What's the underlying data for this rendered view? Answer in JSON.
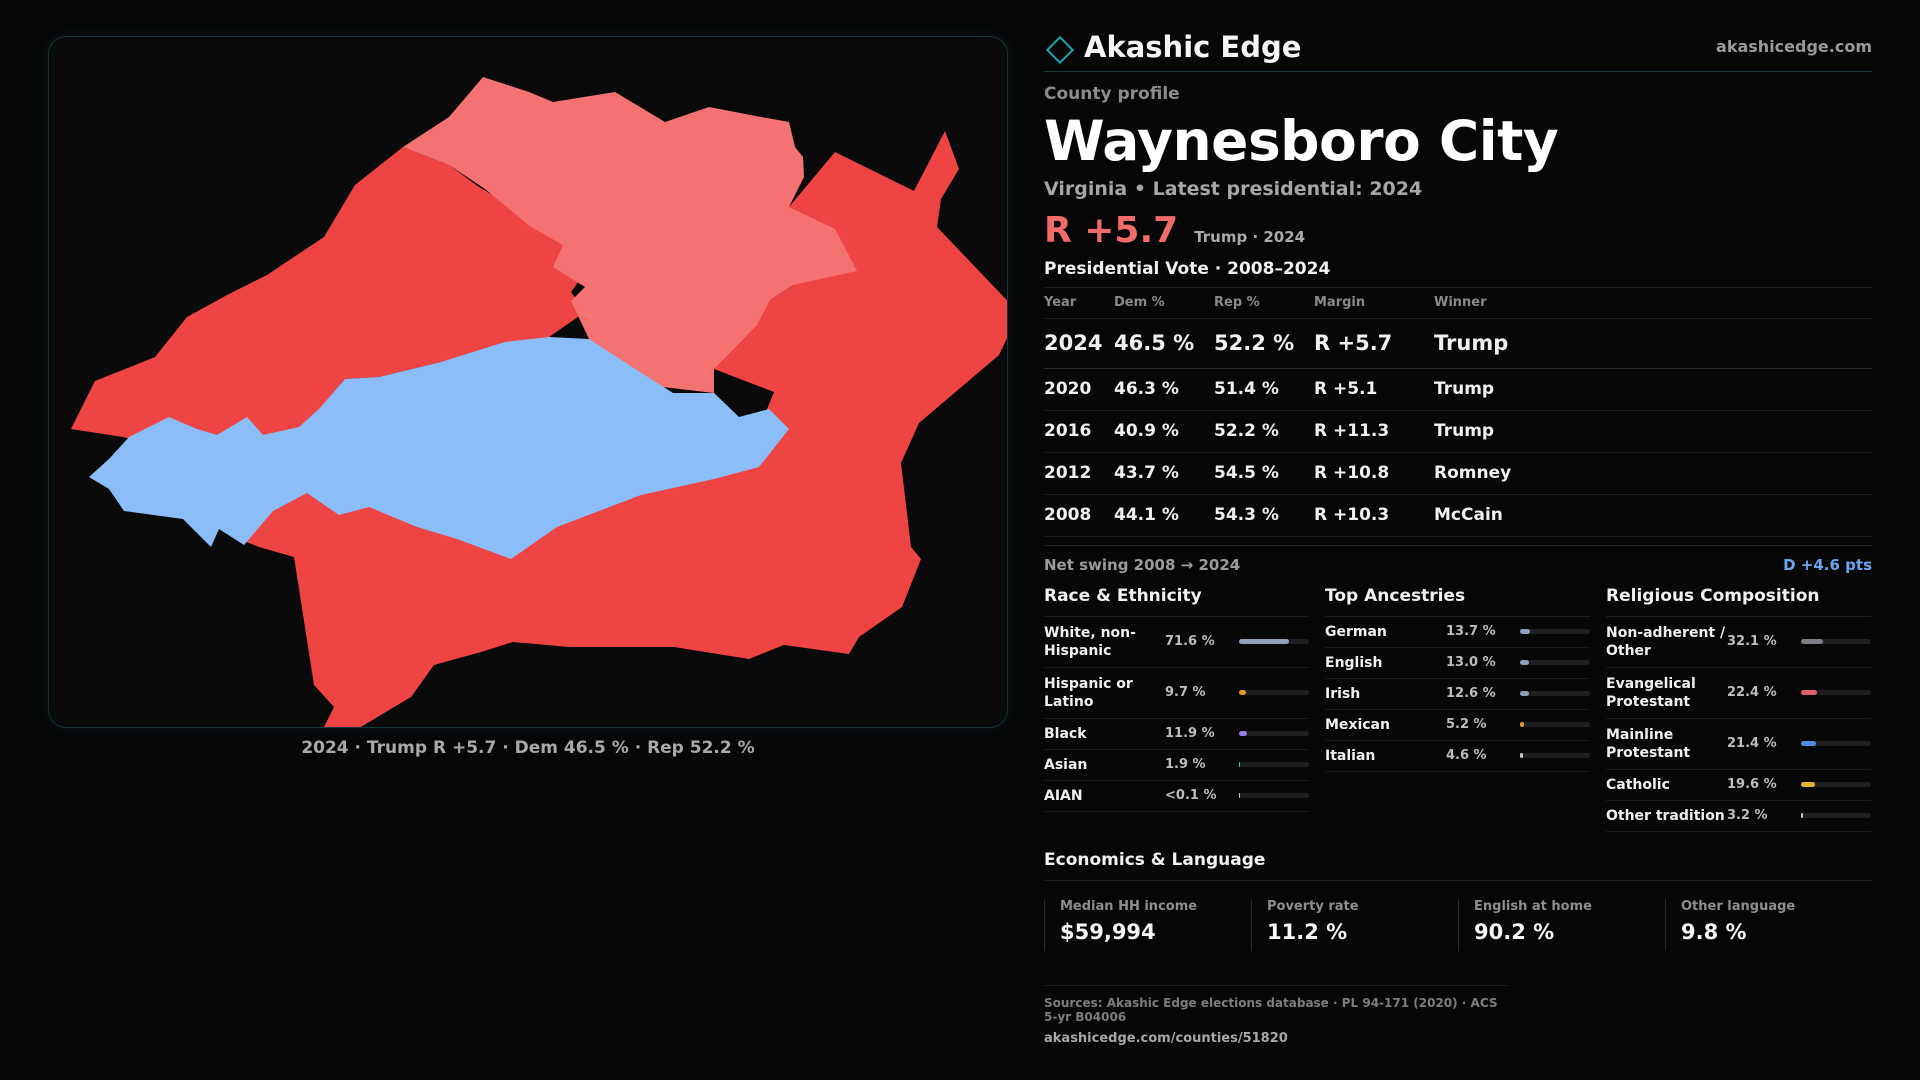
{
  "brand": {
    "name": "Akashic Edge",
    "url": "akashicedge.com",
    "accent": "#15a7b5"
  },
  "map": {
    "caption": "2024 · Trump R +5.7 · Dem 46.5 % · Rep 52.2 %",
    "precinct_colors": {
      "strong_rep": "#ef4444",
      "lean_rep": "#f47272",
      "dem": "#8bbef8"
    }
  },
  "profile": {
    "eyebrow": "County profile",
    "name": "Waynesboro City",
    "subline": "Virginia • Latest presidential: 2024",
    "headline_margin": "R +5.7",
    "headline_note": "Trump · 2024"
  },
  "votes": {
    "title": "Presidential Vote · 2008–2024",
    "headers": {
      "year": "Year",
      "dem": "Dem %",
      "rep": "Rep %",
      "margin": "Margin",
      "winner": "Winner"
    },
    "rows": [
      {
        "year": "2024",
        "dem": "46.5 %",
        "rep": "52.2 %",
        "margin": "R +5.7",
        "winner": "Trump"
      },
      {
        "year": "2020",
        "dem": "46.3 %",
        "rep": "51.4 %",
        "margin": "R +5.1",
        "winner": "Trump"
      },
      {
        "year": "2016",
        "dem": "40.9 %",
        "rep": "52.2 %",
        "margin": "R +11.3",
        "winner": "Trump"
      },
      {
        "year": "2012",
        "dem": "43.7 %",
        "rep": "54.5 %",
        "margin": "R +10.8",
        "winner": "Romney"
      },
      {
        "year": "2008",
        "dem": "44.1 %",
        "rep": "54.3 %",
        "margin": "R +10.3",
        "winner": "McCain"
      }
    ],
    "swing_label": "Net swing 2008 → 2024",
    "swing_value": "D +4.6 pts"
  },
  "race": {
    "title": "Race & Ethnicity",
    "items": [
      {
        "label": "White, non-Hispanic",
        "value": "71.6 %",
        "share": 71.6,
        "color": "#8e9fb8"
      },
      {
        "label": "Hispanic or Latino",
        "value": "9.7 %",
        "share": 9.7,
        "color": "#e0962c"
      },
      {
        "label": "Black",
        "value": "11.9 %",
        "share": 11.9,
        "color": "#9b7fe6"
      },
      {
        "label": "Asian",
        "value": "1.9 %",
        "share": 1.9,
        "color": "#3cc4a6"
      },
      {
        "label": "AIAN",
        "value": "<0.1 %",
        "share": 0.05,
        "color": "#c2c2c2"
      }
    ]
  },
  "ancestry": {
    "title": "Top Ancestries",
    "items": [
      {
        "label": "German",
        "value": "13.7 %",
        "share": 13.7,
        "color": "#8e9fb8"
      },
      {
        "label": "English",
        "value": "13.0 %",
        "share": 13.0,
        "color": "#8e9fb8"
      },
      {
        "label": "Irish",
        "value": "12.6 %",
        "share": 12.6,
        "color": "#8e9fb8"
      },
      {
        "label": "Mexican",
        "value": "5.2 %",
        "share": 5.2,
        "color": "#e0962c"
      },
      {
        "label": "Italian",
        "value": "4.6 %",
        "share": 4.6,
        "color": "#c9c9c9"
      }
    ]
  },
  "religion": {
    "title": "Religious Composition",
    "items": [
      {
        "label": "Non-adherent / Other",
        "value": "32.1 %",
        "share": 32.1,
        "color": "#7d7f86"
      },
      {
        "label": "Evangelical Protestant",
        "value": "22.4 %",
        "share": 22.4,
        "color": "#e0606e"
      },
      {
        "label": "Mainline Protestant",
        "value": "21.4 %",
        "share": 21.4,
        "color": "#4f8be0"
      },
      {
        "label": "Catholic",
        "value": "19.6 %",
        "share": 19.6,
        "color": "#e3b52c"
      },
      {
        "label": "Other tradition",
        "value": "3.2 %",
        "share": 3.2,
        "color": "#c9c9c9"
      }
    ]
  },
  "economics": {
    "title": "Economics & Language",
    "cards": [
      {
        "label": "Median HH income",
        "value": "$59,994"
      },
      {
        "label": "Poverty rate",
        "value": "11.2 %"
      },
      {
        "label": "English at home",
        "value": "90.2 %"
      },
      {
        "label": "Other language",
        "value": "9.8 %"
      }
    ]
  },
  "sources": {
    "line": "Sources: Akashic Edge elections database · PL 94-171 (2020) · ACS 5-yr B04006",
    "url": "akashicedge.com/counties/51820"
  }
}
